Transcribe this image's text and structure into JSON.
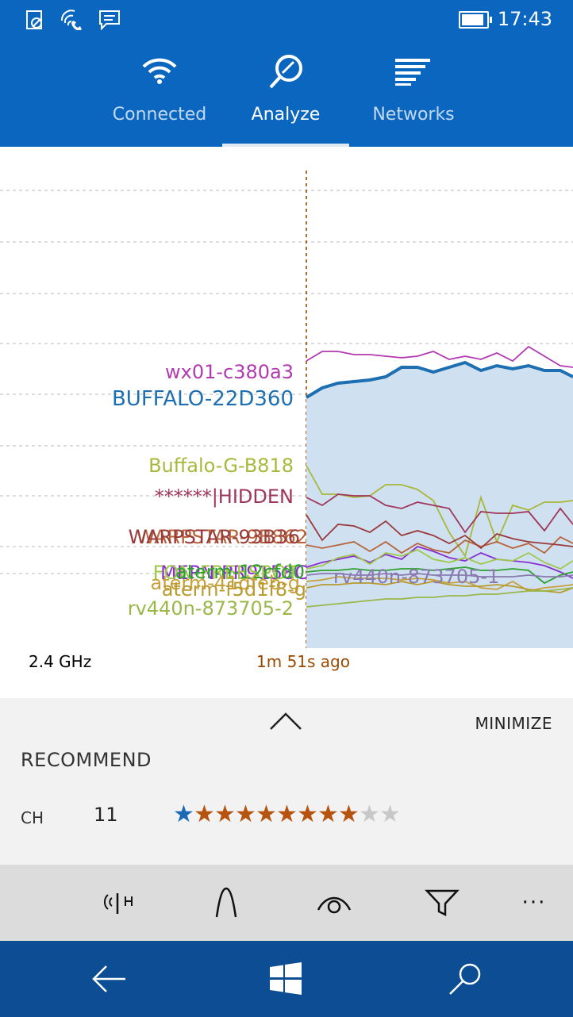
{
  "status": {
    "time": "17:43",
    "battery_level": 0.9,
    "icons": [
      "do-not-disturb-icon",
      "wifi-call-icon",
      "message-icon"
    ]
  },
  "tabs": [
    {
      "label": "Connected",
      "icon": "wifi-icon",
      "active": false
    },
    {
      "label": "Analyze",
      "icon": "magnifier-icon",
      "active": true
    },
    {
      "label": "Networks",
      "icon": "list-icon",
      "active": false
    }
  ],
  "chart_data": {
    "type": "line",
    "x_label": "1m 51s ago",
    "band": "2.4 GHz",
    "series": [
      {
        "name": "wx01-c380a3",
        "color": "#b13ab0"
      },
      {
        "name": "BUFFALO-22D360",
        "color": "#1e6fb2"
      },
      {
        "name": "Buffalo-G-B818",
        "color": "#a8b83a"
      },
      {
        "name": "******|HIDDEN",
        "color": "#a0355a"
      },
      {
        "name": "WARPSTAR-9B862",
        "color": "#b8643a"
      },
      {
        "name": "WARPSTAR-93B36",
        "color": "#9a3a3a"
      },
      {
        "name": "MEPN-PR9158C",
        "color": "#8a2ed0"
      },
      {
        "name": "FON-FREESPOT",
        "color": "#9fc84a"
      },
      {
        "name": "aterm-12cfd0",
        "color": "#2ea02e"
      },
      {
        "name": "aterm-41dfeb-g",
        "color": "#c8a03a"
      },
      {
        "name": "aterm-f5d1f8-g",
        "color": "#b89a2e"
      },
      {
        "name": "rv440n-873705-1",
        "color": "#8a7ab0"
      },
      {
        "name": "rv440n-873705-2",
        "color": "#9ab84a"
      }
    ]
  },
  "panel": {
    "minimize": "MINIMIZE",
    "recommend": "RECOMMEND",
    "ch_label": "CH",
    "ch_value": "11",
    "stars": [
      {
        "glyph": "★",
        "color": "#1a6ab8"
      },
      {
        "glyph": "★",
        "color": "#b5530f"
      },
      {
        "glyph": "★",
        "color": "#b5530f"
      },
      {
        "glyph": "★",
        "color": "#b5530f"
      },
      {
        "glyph": "★",
        "color": "#b5530f"
      },
      {
        "glyph": "★",
        "color": "#b5530f"
      },
      {
        "glyph": "★",
        "color": "#b5530f"
      },
      {
        "glyph": "★",
        "color": "#b5530f"
      },
      {
        "glyph": "★",
        "color": "#b5530f"
      },
      {
        "glyph": "★",
        "color": "#c8c8c8"
      },
      {
        "glyph": "★",
        "color": "#c8c8c8"
      }
    ]
  },
  "appbar": {
    "more": "···",
    "icons": [
      "signal-icon",
      "wave-icon",
      "eye-icon",
      "filter-icon",
      "more-icon"
    ]
  },
  "navbar": {
    "icons": [
      "back-icon",
      "windows-icon",
      "search-icon"
    ]
  }
}
